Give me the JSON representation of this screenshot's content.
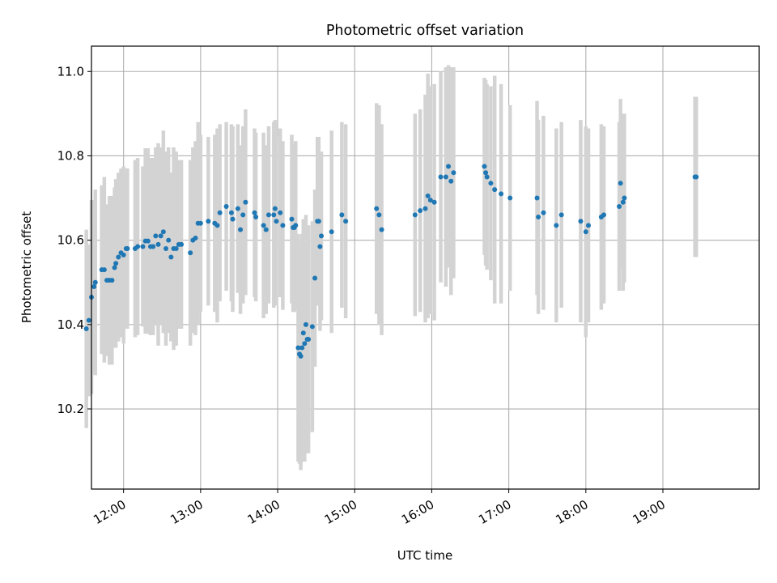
{
  "chart_data": {
    "type": "scatter",
    "title": "Photometric offset variation",
    "xlabel": "UTC time",
    "ylabel": "Photometric offset",
    "x_unit": "UTC time (HH:MM)",
    "xlim": [
      "11:35",
      "20:15"
    ],
    "ylim": [
      10.01,
      11.06
    ],
    "x_ticks": [
      "12:00",
      "13:00",
      "14:00",
      "15:00",
      "16:00",
      "17:00",
      "18:00",
      "19:00"
    ],
    "y_ticks": [
      10.2,
      10.4,
      10.6,
      10.8,
      11.0
    ],
    "y_tick_labels": [
      "10.2",
      "10.4",
      "10.6",
      "10.8",
      "11.0"
    ],
    "grid": true,
    "colors": {
      "points": "#1f77b4",
      "errorbars": "#d3d3d3",
      "grid": "#b0b0b0"
    },
    "series": [
      {
        "points": [
          {
            "x": "11:31",
            "y": 10.39,
            "err": 0.235
          },
          {
            "x": "11:33",
            "y": 10.41,
            "err": 0.18
          },
          {
            "x": "11:35",
            "y": 10.465,
            "err": 0.23
          },
          {
            "x": "11:37",
            "y": 10.49,
            "err": 0.205
          },
          {
            "x": "11:38",
            "y": 10.5,
            "err": 0.22
          },
          {
            "x": "11:43",
            "y": 10.53,
            "err": 0.2
          },
          {
            "x": "11:45",
            "y": 10.53,
            "err": 0.22
          },
          {
            "x": "11:47",
            "y": 10.505,
            "err": 0.18
          },
          {
            "x": "11:49",
            "y": 10.505,
            "err": 0.2
          },
          {
            "x": "11:51",
            "y": 10.505,
            "err": 0.2
          },
          {
            "x": "11:53",
            "y": 10.535,
            "err": 0.19
          },
          {
            "x": "11:54",
            "y": 10.545,
            "err": 0.2
          },
          {
            "x": "11:56",
            "y": 10.56,
            "err": 0.2
          },
          {
            "x": "11:58",
            "y": 10.57,
            "err": 0.2
          },
          {
            "x": "12:00",
            "y": 10.565,
            "err": 0.21
          },
          {
            "x": "12:02",
            "y": 10.58,
            "err": 0.19
          },
          {
            "x": "12:03",
            "y": 10.58,
            "err": 0.19
          },
          {
            "x": "12:09",
            "y": 10.58,
            "err": 0.21
          },
          {
            "x": "12:11",
            "y": 10.585,
            "err": 0.21
          },
          {
            "x": "12:15",
            "y": 10.585,
            "err": 0.19
          },
          {
            "x": "12:17",
            "y": 10.598,
            "err": 0.22
          },
          {
            "x": "12:19",
            "y": 10.598,
            "err": 0.22
          },
          {
            "x": "12:21",
            "y": 10.585,
            "err": 0.21
          },
          {
            "x": "12:23",
            "y": 10.585,
            "err": 0.21
          },
          {
            "x": "12:25",
            "y": 10.61,
            "err": 0.21
          },
          {
            "x": "12:27",
            "y": 10.59,
            "err": 0.24
          },
          {
            "x": "12:29",
            "y": 10.61,
            "err": 0.21
          },
          {
            "x": "12:31",
            "y": 10.62,
            "err": 0.24
          },
          {
            "x": "12:33",
            "y": 10.58,
            "err": 0.23
          },
          {
            "x": "12:35",
            "y": 10.6,
            "err": 0.22
          },
          {
            "x": "12:37",
            "y": 10.56,
            "err": 0.2
          },
          {
            "x": "12:39",
            "y": 10.58,
            "err": 0.24
          },
          {
            "x": "12:41",
            "y": 10.58,
            "err": 0.23
          },
          {
            "x": "12:43",
            "y": 10.59,
            "err": 0.2
          },
          {
            "x": "12:45",
            "y": 10.59,
            "err": 0.2
          },
          {
            "x": "12:52",
            "y": 10.57,
            "err": 0.22
          },
          {
            "x": "12:54",
            "y": 10.6,
            "err": 0.22
          },
          {
            "x": "12:56",
            "y": 10.605,
            "err": 0.23
          },
          {
            "x": "12:58",
            "y": 10.64,
            "err": 0.24
          },
          {
            "x": "13:00",
            "y": 10.64,
            "err": 0.21
          },
          {
            "x": "13:06",
            "y": 10.645,
            "err": 0.2
          },
          {
            "x": "13:11",
            "y": 10.64,
            "err": 0.21
          },
          {
            "x": "13:13",
            "y": 10.635,
            "err": 0.23
          },
          {
            "x": "13:15",
            "y": 10.665,
            "err": 0.21
          },
          {
            "x": "13:20",
            "y": 10.68,
            "err": 0.2
          },
          {
            "x": "13:24",
            "y": 10.665,
            "err": 0.21
          },
          {
            "x": "13:25",
            "y": 10.65,
            "err": 0.22
          },
          {
            "x": "13:29",
            "y": 10.675,
            "err": 0.2
          },
          {
            "x": "13:31",
            "y": 10.625,
            "err": 0.2
          },
          {
            "x": "13:33",
            "y": 10.66,
            "err": 0.21
          },
          {
            "x": "13:35",
            "y": 10.69,
            "err": 0.22
          },
          {
            "x": "13:42",
            "y": 10.665,
            "err": 0.2
          },
          {
            "x": "13:43",
            "y": 10.655,
            "err": 0.2
          },
          {
            "x": "13:49",
            "y": 10.635,
            "err": 0.22
          },
          {
            "x": "13:51",
            "y": 10.625,
            "err": 0.2
          },
          {
            "x": "13:53",
            "y": 10.66,
            "err": 0.21
          },
          {
            "x": "13:57",
            "y": 10.66,
            "err": 0.22
          },
          {
            "x": "13:58",
            "y": 10.675,
            "err": 0.21
          },
          {
            "x": "13:59",
            "y": 10.645,
            "err": 0.2
          },
          {
            "x": "14:02",
            "y": 10.665,
            "err": 0.2
          },
          {
            "x": "14:04",
            "y": 10.635,
            "err": 0.2
          },
          {
            "x": "14:11",
            "y": 10.65,
            "err": 0.2
          },
          {
            "x": "14:12",
            "y": 10.63,
            "err": 0.2
          },
          {
            "x": "14:13",
            "y": 10.63,
            "err": 0.2
          },
          {
            "x": "14:14",
            "y": 10.635,
            "err": 0.2
          },
          {
            "x": "14:16",
            "y": 10.345,
            "err": 0.27
          },
          {
            "x": "14:17",
            "y": 10.33,
            "err": 0.26
          },
          {
            "x": "14:18",
            "y": 10.325,
            "err": 0.27
          },
          {
            "x": "14:19",
            "y": 10.345,
            "err": 0.27
          },
          {
            "x": "14:20",
            "y": 10.38,
            "err": 0.27
          },
          {
            "x": "14:21",
            "y": 10.355,
            "err": 0.28
          },
          {
            "x": "14:22",
            "y": 10.4,
            "err": 0.26
          },
          {
            "x": "14:23",
            "y": 10.365,
            "err": 0.27
          },
          {
            "x": "14:24",
            "y": 10.365,
            "err": 0.27
          },
          {
            "x": "14:27",
            "y": 10.395,
            "err": 0.25
          },
          {
            "x": "14:29",
            "y": 10.51,
            "err": 0.21
          },
          {
            "x": "14:31",
            "y": 10.645,
            "err": 0.2
          },
          {
            "x": "14:32",
            "y": 10.645,
            "err": 0.2
          },
          {
            "x": "14:33",
            "y": 10.585,
            "err": 0.2
          },
          {
            "x": "14:34",
            "y": 10.61,
            "err": 0.2
          },
          {
            "x": "14:42",
            "y": 10.62,
            "err": 0.24
          },
          {
            "x": "14:50",
            "y": 10.66,
            "err": 0.22
          },
          {
            "x": "14:53",
            "y": 10.645,
            "err": 0.23
          },
          {
            "x": "15:17",
            "y": 10.675,
            "err": 0.25
          },
          {
            "x": "15:19",
            "y": 10.66,
            "err": 0.26
          },
          {
            "x": "15:21",
            "y": 10.625,
            "err": 0.25
          },
          {
            "x": "15:47",
            "y": 10.66,
            "err": 0.24
          },
          {
            "x": "15:51",
            "y": 10.67,
            "err": 0.24
          },
          {
            "x": "15:55",
            "y": 10.675,
            "err": 0.27
          },
          {
            "x": "15:57",
            "y": 10.705,
            "err": 0.29
          },
          {
            "x": "15:59",
            "y": 10.695,
            "err": 0.27
          },
          {
            "x": "16:02",
            "y": 10.69,
            "err": 0.28
          },
          {
            "x": "16:07",
            "y": 10.75,
            "err": 0.25
          },
          {
            "x": "16:11",
            "y": 10.75,
            "err": 0.26
          },
          {
            "x": "16:13",
            "y": 10.775,
            "err": 0.24
          },
          {
            "x": "16:15",
            "y": 10.74,
            "err": 0.27
          },
          {
            "x": "16:17",
            "y": 10.76,
            "err": 0.25
          },
          {
            "x": "16:41",
            "y": 10.775,
            "err": 0.21
          },
          {
            "x": "16:42",
            "y": 10.76,
            "err": 0.22
          },
          {
            "x": "16:43",
            "y": 10.75,
            "err": 0.22
          },
          {
            "x": "16:46",
            "y": 10.735,
            "err": 0.23
          },
          {
            "x": "16:49",
            "y": 10.72,
            "err": 0.27
          },
          {
            "x": "16:54",
            "y": 10.71,
            "err": 0.26
          },
          {
            "x": "17:01",
            "y": 10.7,
            "err": 0.22
          },
          {
            "x": "17:22",
            "y": 10.7,
            "err": 0.23
          },
          {
            "x": "17:23",
            "y": 10.655,
            "err": 0.23
          },
          {
            "x": "17:27",
            "y": 10.665,
            "err": 0.23
          },
          {
            "x": "17:37",
            "y": 10.635,
            "err": 0.23
          },
          {
            "x": "17:41",
            "y": 10.66,
            "err": 0.22
          },
          {
            "x": "17:56",
            "y": 10.645,
            "err": 0.24
          },
          {
            "x": "18:00",
            "y": 10.62,
            "err": 0.25
          },
          {
            "x": "18:02",
            "y": 10.635,
            "err": 0.23
          },
          {
            "x": "18:12",
            "y": 10.655,
            "err": 0.22
          },
          {
            "x": "18:14",
            "y": 10.66,
            "err": 0.21
          },
          {
            "x": "18:26",
            "y": 10.68,
            "err": 0.2
          },
          {
            "x": "18:27",
            "y": 10.735,
            "err": 0.2
          },
          {
            "x": "18:29",
            "y": 10.69,
            "err": 0.21
          },
          {
            "x": "18:30",
            "y": 10.7,
            "err": 0.2
          },
          {
            "x": "19:25",
            "y": 10.75,
            "err": 0.19
          },
          {
            "x": "19:26",
            "y": 10.75,
            "err": 0.19
          }
        ]
      }
    ]
  }
}
